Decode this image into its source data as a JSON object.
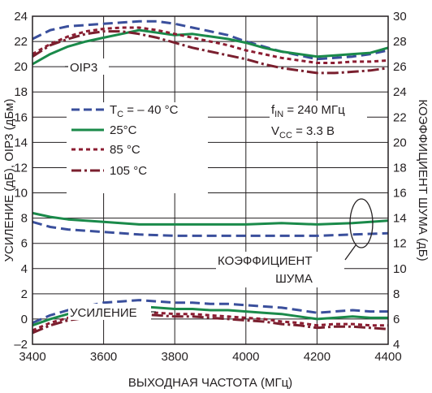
{
  "chart_data": {
    "type": "line",
    "xlabel": "ВЫХОДНАЯ ЧАСТОТА (МГц)",
    "ylabel": "УСИЛЕНИЕ (дБ), OIP3 (дБм)",
    "y2label": "КОЭФФИЦИЕНТ ШУМА (дБ)",
    "xlim": [
      3400,
      4400
    ],
    "ylim": [
      -2,
      24
    ],
    "y2lim": [
      4,
      30
    ],
    "grid": true,
    "legend_position": "upper-left",
    "x_ticks": [
      "3400",
      "3600",
      "3800",
      "4000",
      "4200",
      "4400"
    ],
    "y_ticks": [
      "–2",
      "0",
      "2",
      "4",
      "6",
      "8",
      "10",
      "12",
      "14",
      "16",
      "18",
      "20",
      "22",
      "24"
    ],
    "y2_ticks": [
      "4",
      "6",
      "8",
      "10",
      "12",
      "14",
      "16",
      "18",
      "20",
      "22",
      "24",
      "26",
      "28",
      "30"
    ],
    "colors": {
      "minus40": "#3a4f9c",
      "plus25": "#1a8a4a",
      "plus85": "#8c1d32",
      "plus105": "#7a1f2e",
      "grid": "#231f20",
      "text": "#231f20"
    },
    "legend": [
      {
        "key": "minus40",
        "label_main": "T",
        "label_sub": "C",
        "label_rest": " = – 40 °C"
      },
      {
        "key": "plus25",
        "label": "25°C"
      },
      {
        "key": "plus85",
        "label": "85 °C"
      },
      {
        "key": "plus105",
        "label": "105 °C"
      }
    ],
    "annotations": {
      "oip3": "OIP3",
      "gain": "УСИЛЕНИЕ",
      "nf_line1": "КОЭФФИЦИЕНТ",
      "nf_line2": "ШУМА",
      "fin_main": "f",
      "fin_sub": "IN",
      "fin_rest": " = 240 МГц",
      "vcc_main": "V",
      "vcc_sub": "CC",
      "vcc_rest": " = 3.3 В"
    },
    "groups": [
      {
        "quantity": "OIP3",
        "axis": "left",
        "series": [
          {
            "key": "minus40",
            "x": [
              3400,
              3450,
              3500,
              3550,
              3600,
              3650,
              3700,
              3750,
              3800,
              3850,
              3900,
              3950,
              4000,
              4050,
              4100,
              4150,
              4200,
              4250,
              4300,
              4350,
              4400
            ],
            "y": [
              22.2,
              22.9,
              23.2,
              23.3,
              23.4,
              23.5,
              23.6,
              23.6,
              23.4,
              23.1,
              22.8,
              22.5,
              22.0,
              21.6,
              21.2,
              20.9,
              20.6,
              20.7,
              20.8,
              21.0,
              21.3
            ]
          },
          {
            "key": "plus25",
            "x": [
              3400,
              3450,
              3500,
              3550,
              3600,
              3650,
              3700,
              3750,
              3800,
              3850,
              3900,
              3950,
              4000,
              4050,
              4100,
              4150,
              4200,
              4250,
              4300,
              4350,
              4400
            ],
            "y": [
              20.2,
              21.0,
              21.6,
              22.0,
              22.3,
              22.6,
              22.9,
              22.7,
              22.5,
              22.6,
              22.4,
              22.2,
              21.9,
              21.5,
              21.2,
              21.0,
              20.8,
              20.9,
              21.0,
              21.1,
              21.5
            ]
          },
          {
            "key": "plus85",
            "x": [
              3400,
              3450,
              3500,
              3550,
              3600,
              3650,
              3700,
              3750,
              3800,
              3850,
              3900,
              3950,
              4000,
              4050,
              4100,
              4150,
              4200,
              4250,
              4300,
              4350,
              4400
            ],
            "y": [
              21.0,
              21.8,
              22.4,
              22.8,
              23.0,
              23.1,
              23.1,
              22.9,
              22.6,
              22.3,
              22.0,
              21.7,
              21.3,
              21.0,
              20.7,
              20.5,
              20.3,
              20.3,
              20.4,
              20.4,
              20.5
            ]
          },
          {
            "key": "plus105",
            "x": [
              3400,
              3450,
              3500,
              3550,
              3600,
              3650,
              3700,
              3750,
              3800,
              3850,
              3900,
              3950,
              4000,
              4050,
              4100,
              4150,
              4200,
              4250,
              4300,
              4350,
              4400
            ],
            "y": [
              20.8,
              21.7,
              22.2,
              22.6,
              22.8,
              22.8,
              22.6,
              22.3,
              21.9,
              21.5,
              21.2,
              20.9,
              20.6,
              20.2,
              19.9,
              19.7,
              19.5,
              19.5,
              19.6,
              19.7,
              19.9
            ]
          }
        ]
      },
      {
        "quantity": "Коэффициент шума",
        "axis": "right",
        "series": [
          {
            "key": "minus40",
            "x": [
              3400,
              3450,
              3500,
              3550,
              3600,
              3700,
              3800,
              3900,
              4000,
              4100,
              4200,
              4300,
              4400
            ],
            "y": [
              13.7,
              13.3,
              13.1,
              13.0,
              12.9,
              12.7,
              12.6,
              12.6,
              12.6,
              12.6,
              12.6,
              12.7,
              12.8
            ]
          },
          {
            "key": "plus25",
            "x": [
              3400,
              3450,
              3500,
              3550,
              3600,
              3700,
              3800,
              3900,
              4000,
              4100,
              4200,
              4300,
              4400
            ],
            "y": [
              14.4,
              14.1,
              13.9,
              13.8,
              13.7,
              13.5,
              13.5,
              13.5,
              13.5,
              13.6,
              13.5,
              13.6,
              13.8
            ]
          }
        ]
      },
      {
        "quantity": "Усиление",
        "axis": "left",
        "series": [
          {
            "key": "minus40",
            "x": [
              3400,
              3450,
              3500,
              3550,
              3600,
              3650,
              3700,
              3750,
              3800,
              3850,
              3900,
              3950,
              4000,
              4050,
              4100,
              4150,
              4200,
              4250,
              4300,
              4350,
              4400
            ],
            "y": [
              -0.3,
              0.3,
              0.7,
              1.0,
              1.3,
              1.4,
              1.5,
              1.4,
              1.3,
              1.3,
              1.2,
              1.2,
              1.1,
              1.0,
              0.9,
              0.7,
              0.5,
              0.6,
              0.7,
              0.6,
              0.6
            ]
          },
          {
            "key": "plus25",
            "x": [
              3400,
              3450,
              3500,
              3550,
              3600,
              3650,
              3700,
              3750,
              3800,
              3850,
              3900,
              3950,
              4000,
              4050,
              4100,
              4150,
              4200,
              4250,
              4300,
              4350,
              4400
            ],
            "y": [
              -0.5,
              0.0,
              0.4,
              0.6,
              0.8,
              0.9,
              1.0,
              0.9,
              0.8,
              0.8,
              0.7,
              0.7,
              0.6,
              0.5,
              0.4,
              0.2,
              0.0,
              0.1,
              0.2,
              0.1,
              0.1
            ]
          },
          {
            "key": "plus85",
            "x": [
              3400,
              3450,
              3500,
              3550,
              3600,
              3650,
              3700,
              3750,
              3800,
              3850,
              3900,
              3950,
              4000,
              4050,
              4100,
              4150,
              4200,
              4250,
              4300,
              4350,
              4400
            ],
            "y": [
              -0.9,
              -0.3,
              0.1,
              0.3,
              0.4,
              0.5,
              0.6,
              0.5,
              0.4,
              0.4,
              0.3,
              0.2,
              0.1,
              0.0,
              -0.2,
              -0.3,
              -0.5,
              -0.4,
              -0.4,
              -0.5,
              -0.5
            ]
          },
          {
            "key": "plus105",
            "x": [
              3400,
              3450,
              3500,
              3550,
              3600,
              3650,
              3700,
              3750,
              3800,
              3850,
              3900,
              3950,
              4000,
              4050,
              4100,
              4150,
              4200,
              4250,
              4300,
              4350,
              4400
            ],
            "y": [
              -1.1,
              -0.5,
              -0.1,
              0.1,
              0.2,
              0.3,
              0.4,
              0.3,
              0.2,
              0.2,
              0.1,
              0.0,
              -0.1,
              -0.2,
              -0.4,
              -0.5,
              -0.7,
              -0.6,
              -0.6,
              -0.7,
              -0.8
            ]
          }
        ]
      }
    ]
  }
}
